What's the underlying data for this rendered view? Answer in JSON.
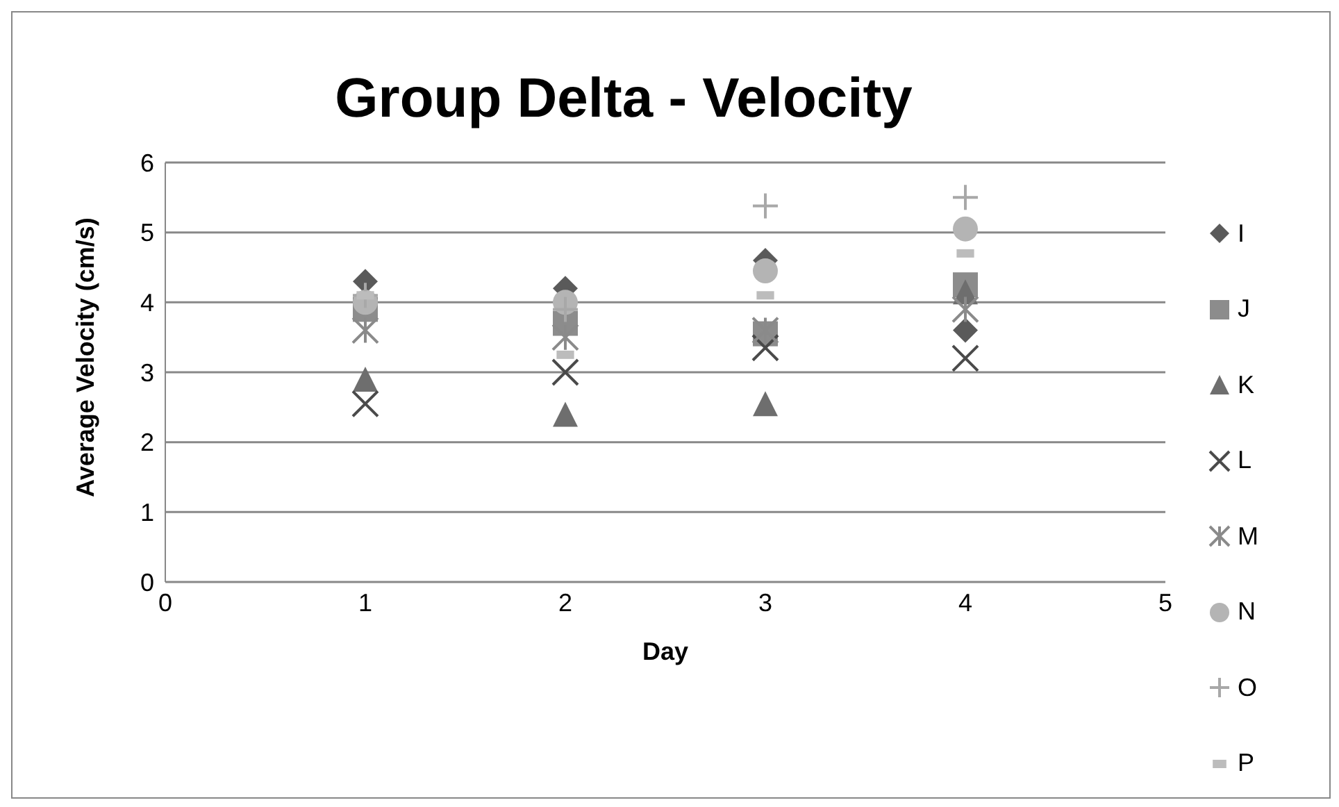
{
  "chart_data": {
    "type": "scatter",
    "title": "Group Delta - Velocity",
    "xlabel": "Day",
    "ylabel": "Average Velocity (cm/s)",
    "x": [
      1,
      2,
      3,
      4
    ],
    "xlim": [
      0,
      5
    ],
    "xticks": [
      0,
      1,
      2,
      3,
      4,
      5
    ],
    "ylim": [
      0,
      6
    ],
    "yticks": [
      0,
      1,
      2,
      3,
      4,
      5,
      6
    ],
    "grid": "y",
    "legend": "right",
    "series": [
      {
        "name": "I",
        "color": "#5a5a5a",
        "marker": "diamond",
        "values": [
          4.3,
          4.2,
          4.6,
          3.6
        ]
      },
      {
        "name": "J",
        "color": "#8c8c8c",
        "marker": "square",
        "values": [
          3.9,
          3.7,
          3.55,
          4.25
        ]
      },
      {
        "name": "K",
        "color": "#6e6e6e",
        "marker": "triangle",
        "values": [
          2.9,
          2.4,
          2.55,
          4.15
        ]
      },
      {
        "name": "L",
        "color": "#4a4a4a",
        "values": [
          2.55,
          3.0,
          3.35,
          3.2
        ]
      },
      {
        "name": "M",
        "color": "#8a8a8a",
        "values": [
          3.6,
          3.5,
          3.6,
          3.9
        ]
      },
      {
        "name": "N",
        "color": "#b4b4b4",
        "marker": "circle",
        "values": [
          4.0,
          4.0,
          4.45,
          5.05
        ]
      },
      {
        "name": "O",
        "color": "#a8a8a8",
        "values": [
          4.1,
          3.9,
          5.38,
          5.5
        ]
      },
      {
        "name": "P",
        "color": "#bcbcbc",
        "values": [
          4.1,
          3.25,
          4.1,
          4.7
        ]
      }
    ]
  }
}
